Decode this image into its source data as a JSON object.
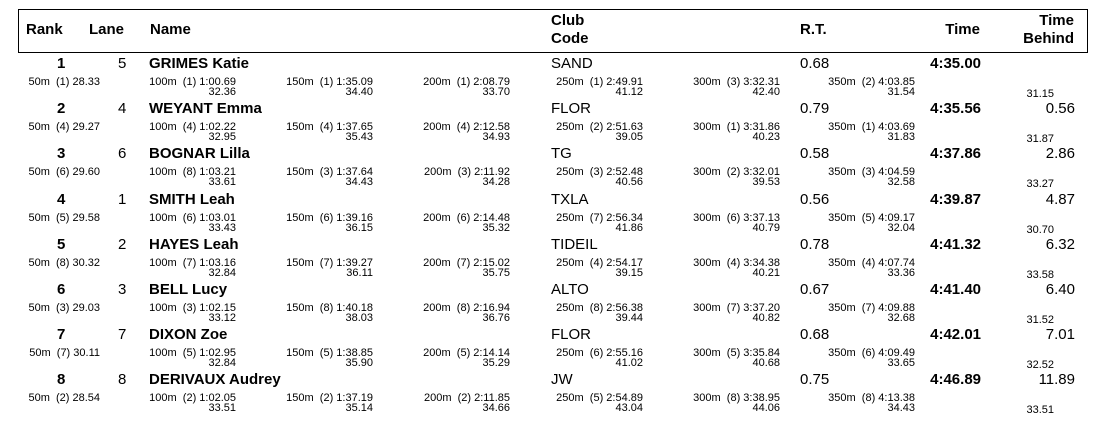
{
  "columns": {
    "rank": "Rank",
    "lane": "Lane",
    "name": "Name",
    "club_line1": "Club",
    "club_line2": "Code",
    "rt": "R.T.",
    "time": "Time",
    "behind_line1": "Time",
    "behind_line2": "Behind"
  },
  "results": [
    {
      "rank": "1",
      "lane": "5",
      "name": "GRIMES Katie",
      "club": "SAND",
      "rt": "0.68",
      "time": "4:35.00",
      "behind": "",
      "splits": [
        "50m  (1) 28.33",
        "100m  (1) 1:00.69",
        "150m  (1) 1:35.09",
        "200m  (1) 2:08.79",
        "250m  (1) 2:49.91",
        "300m  (3) 3:32.31",
        "350m  (2) 4:03.85"
      ],
      "laps": [
        "32.36",
        "34.40",
        "33.70",
        "41.12",
        "42.40",
        "31.54",
        "31.15"
      ]
    },
    {
      "rank": "2",
      "lane": "4",
      "name": "WEYANT Emma",
      "club": "FLOR",
      "rt": "0.79",
      "time": "4:35.56",
      "behind": "0.56",
      "splits": [
        "50m  (4) 29.27",
        "100m  (4) 1:02.22",
        "150m  (4) 1:37.65",
        "200m  (4) 2:12.58",
        "250m  (2) 2:51.63",
        "300m  (1) 3:31.86",
        "350m  (1) 4:03.69"
      ],
      "laps": [
        "32.95",
        "35.43",
        "34.93",
        "39.05",
        "40.23",
        "31.83",
        "31.87"
      ]
    },
    {
      "rank": "3",
      "lane": "6",
      "name": "BOGNAR Lilla",
      "club": "TG",
      "rt": "0.58",
      "time": "4:37.86",
      "behind": "2.86",
      "splits": [
        "50m  (6) 29.60",
        "100m  (8) 1:03.21",
        "150m  (3) 1:37.64",
        "200m  (3) 2:11.92",
        "250m  (3) 2:52.48",
        "300m  (2) 3:32.01",
        "350m  (3) 4:04.59"
      ],
      "laps": [
        "33.61",
        "34.43",
        "34.28",
        "40.56",
        "39.53",
        "32.58",
        "33.27"
      ]
    },
    {
      "rank": "4",
      "lane": "1",
      "name": "SMITH Leah",
      "club": "TXLA",
      "rt": "0.56",
      "time": "4:39.87",
      "behind": "4.87",
      "splits": [
        "50m  (5) 29.58",
        "100m  (6) 1:03.01",
        "150m  (6) 1:39.16",
        "200m  (6) 2:14.48",
        "250m  (7) 2:56.34",
        "300m  (6) 3:37.13",
        "350m  (5) 4:09.17"
      ],
      "laps": [
        "33.43",
        "36.15",
        "35.32",
        "41.86",
        "40.79",
        "32.04",
        "30.70"
      ]
    },
    {
      "rank": "5",
      "lane": "2",
      "name": "HAYES Leah",
      "club": "TIDEIL",
      "rt": "0.78",
      "time": "4:41.32",
      "behind": "6.32",
      "splits": [
        "50m  (8) 30.32",
        "100m  (7) 1:03.16",
        "150m  (7) 1:39.27",
        "200m  (7) 2:15.02",
        "250m  (4) 2:54.17",
        "300m  (4) 3:34.38",
        "350m  (4) 4:07.74"
      ],
      "laps": [
        "32.84",
        "36.11",
        "35.75",
        "39.15",
        "40.21",
        "33.36",
        "33.58"
      ]
    },
    {
      "rank": "6",
      "lane": "3",
      "name": "BELL Lucy",
      "club": "ALTO",
      "rt": "0.67",
      "time": "4:41.40",
      "behind": "6.40",
      "splits": [
        "50m  (3) 29.03",
        "100m  (3) 1:02.15",
        "150m  (8) 1:40.18",
        "200m  (8) 2:16.94",
        "250m  (8) 2:56.38",
        "300m  (7) 3:37.20",
        "350m  (7) 4:09.88"
      ],
      "laps": [
        "33.12",
        "38.03",
        "36.76",
        "39.44",
        "40.82",
        "32.68",
        "31.52"
      ]
    },
    {
      "rank": "7",
      "lane": "7",
      "name": "DIXON Zoe",
      "club": "FLOR",
      "rt": "0.68",
      "time": "4:42.01",
      "behind": "7.01",
      "splits": [
        "50m  (7) 30.11",
        "100m  (5) 1:02.95",
        "150m  (5) 1:38.85",
        "200m  (5) 2:14.14",
        "250m  (6) 2:55.16",
        "300m  (5) 3:35.84",
        "350m  (6) 4:09.49"
      ],
      "laps": [
        "32.84",
        "35.90",
        "35.29",
        "41.02",
        "40.68",
        "33.65",
        "32.52"
      ]
    },
    {
      "rank": "8",
      "lane": "8",
      "name": "DERIVAUX Audrey",
      "club": "JW",
      "rt": "0.75",
      "time": "4:46.89",
      "behind": "11.89",
      "splits": [
        "50m  (2) 28.54",
        "100m  (2) 1:02.05",
        "150m  (2) 1:37.19",
        "200m  (2) 2:11.85",
        "250m  (5) 2:54.89",
        "300m  (8) 3:38.95",
        "350m  (8) 4:13.38"
      ],
      "laps": [
        "33.51",
        "35.14",
        "34.66",
        "43.04",
        "44.06",
        "34.43",
        "33.51"
      ]
    }
  ]
}
